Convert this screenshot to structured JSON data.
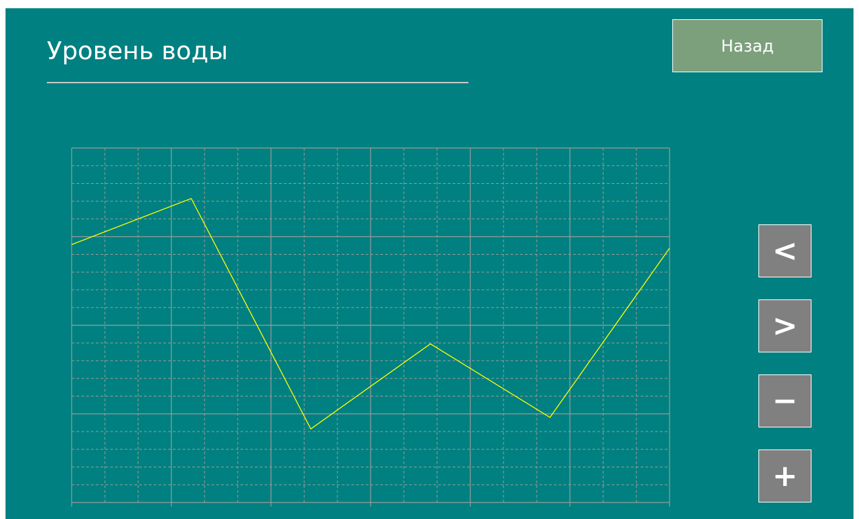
{
  "chart_data": {
    "type": "line",
    "title": "Уровень воды",
    "x": [
      0,
      6,
      12,
      18,
      24,
      30
    ],
    "series": [
      {
        "color": "#ffff00",
        "values": [
          2.91,
          3.43,
          0.83,
          1.79,
          0.96,
          2.87
        ]
      }
    ],
    "xlim": [
      0,
      30
    ],
    "xticks": [
      0,
      5,
      10,
      15,
      20,
      25,
      30
    ],
    "ylim": [
      0,
      4
    ],
    "yticks": [
      0,
      1,
      2,
      3,
      4
    ],
    "grid": true
  },
  "buttons": {
    "back": "Назад",
    "prev": "<",
    "next": ">",
    "zoom_out": "−",
    "zoom_in": "+"
  }
}
